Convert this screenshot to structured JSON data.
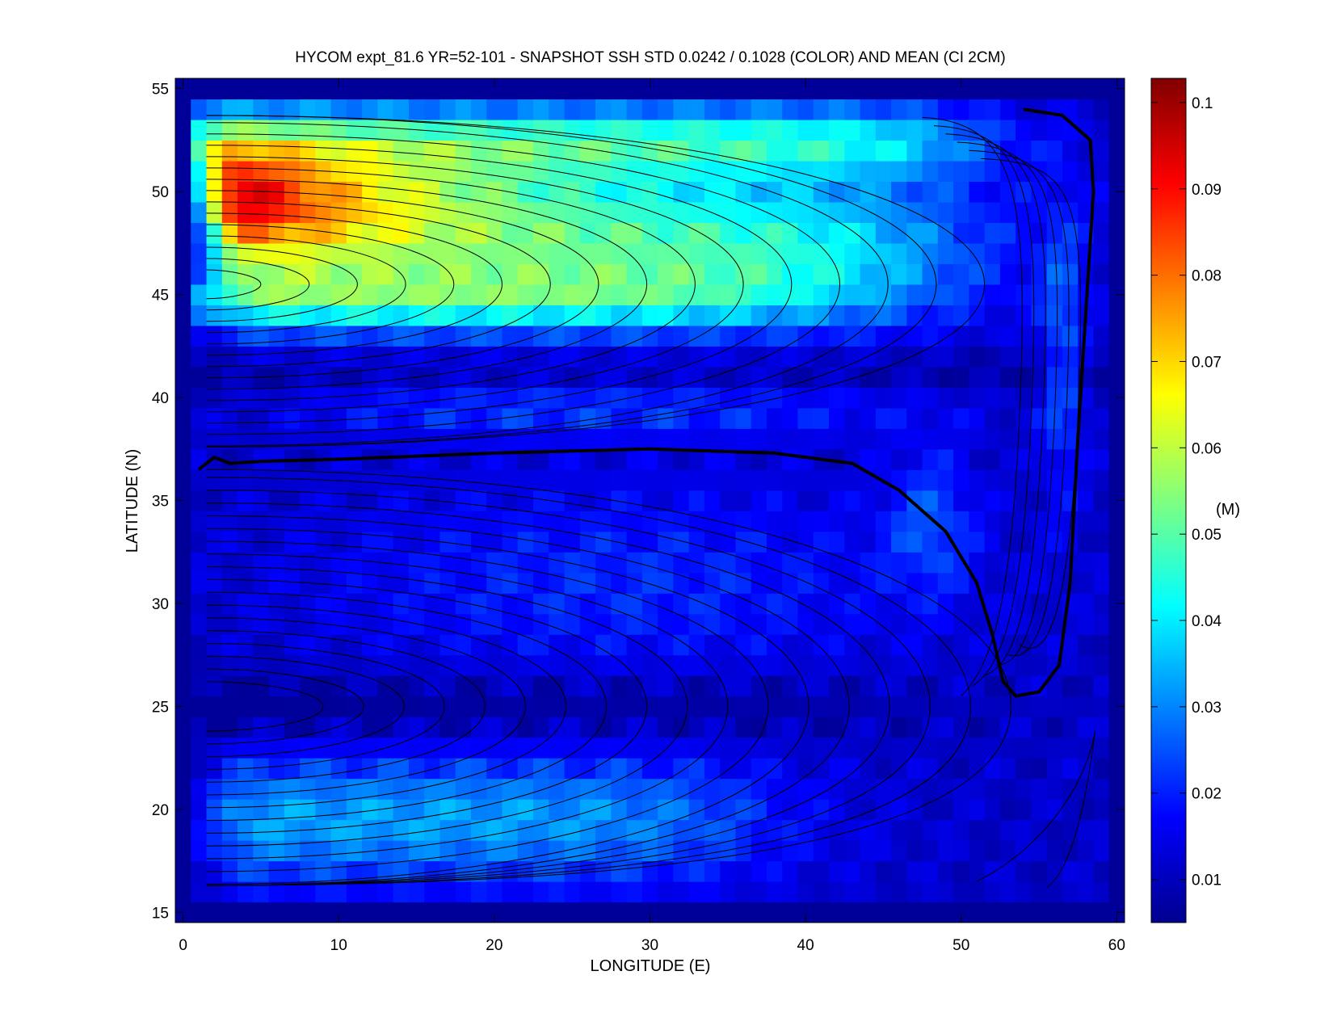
{
  "chart_data": {
    "type": "heatmap",
    "title": "HYCOM expt_81.6 YR=52-101 - SNAPSHOT SSH STD 0.0242 / 0.1028 (COLOR) AND MEAN (CI 2CM)",
    "xlabel": "LONGITUDE (E)",
    "ylabel": "LATITUDE (N)",
    "xlim": [
      -0.5,
      60.5
    ],
    "ylim": [
      14.5,
      55.5
    ],
    "xticks": [
      0,
      10,
      20,
      30,
      40,
      50,
      60
    ],
    "xtick_labels": [
      "0",
      "10",
      "20",
      "30",
      "40",
      "50",
      "60"
    ],
    "yticks": [
      15,
      20,
      25,
      30,
      35,
      40,
      45,
      50,
      55
    ],
    "ytick_labels": [
      "15",
      "20",
      "25",
      "30",
      "35",
      "40",
      "45",
      "50",
      "55"
    ],
    "colorbar": {
      "unit_label": "(M)",
      "range": [
        0.005,
        0.1028
      ],
      "ticks": [
        0.01,
        0.02,
        0.03,
        0.04,
        0.05,
        0.06,
        0.07,
        0.08,
        0.09,
        0.1
      ],
      "tick_labels": [
        "0.01",
        "0.02",
        "0.03",
        "0.04",
        "0.05",
        "0.06",
        "0.07",
        "0.08",
        "0.09",
        "0.1"
      ],
      "colormap": "jet"
    },
    "grid": false,
    "field_features": {
      "domain_lon": [
        1,
        59
      ],
      "domain_lat": [
        16,
        54
      ],
      "std_maximum": {
        "lon": 5,
        "lat": 49.5,
        "value": 0.1028
      },
      "zero_contour_line": [
        [
          1,
          36.5
        ],
        [
          2,
          37.1
        ],
        [
          3,
          36.8
        ],
        [
          5,
          36.9
        ],
        [
          10,
          37.0
        ],
        [
          20,
          37.3
        ],
        [
          30,
          37.5
        ],
        [
          38,
          37.3
        ],
        [
          43,
          36.8
        ],
        [
          46,
          35.5
        ],
        [
          49,
          33.5
        ],
        [
          51,
          31
        ],
        [
          52,
          28.5
        ],
        [
          52.7,
          26.2
        ],
        [
          53.5,
          25.5
        ],
        [
          55,
          25.7
        ],
        [
          56.3,
          27
        ],
        [
          57,
          31
        ],
        [
          57.5,
          38
        ],
        [
          58,
          44
        ],
        [
          58.5,
          50
        ],
        [
          58.3,
          52.5
        ],
        [
          56.5,
          53.7
        ],
        [
          54,
          54
        ]
      ],
      "mean_contour_interval": "2CM"
    }
  }
}
